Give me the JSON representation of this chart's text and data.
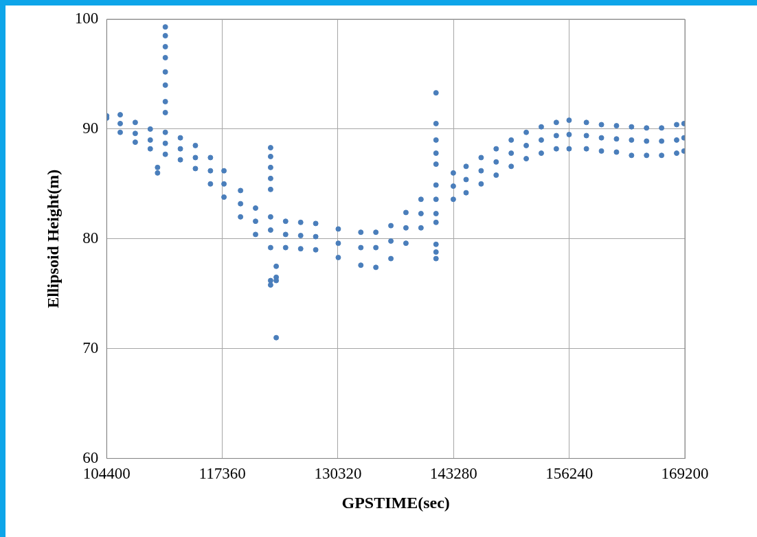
{
  "chart_data": {
    "type": "scatter",
    "xlabel": "GPSTIME(sec)",
    "ylabel": "Ellipsoid Height(m)",
    "xlim": [
      104400,
      169200
    ],
    "xticks": [
      104400,
      117360,
      130320,
      143280,
      156240,
      169200
    ],
    "ylim": [
      60,
      100
    ],
    "yticks": [
      60,
      70,
      80,
      90,
      100
    ],
    "grid": true,
    "marker": "circle",
    "series": [
      {
        "color": "#4a7ebb",
        "x": [
          104400,
          104400,
          105917,
          105917,
          105917,
          107602,
          107602,
          107602,
          109287,
          109287,
          109287,
          110973,
          110973,
          110973,
          112658,
          112658,
          112658,
          114344,
          114344,
          114344,
          116029,
          116029,
          116029,
          117546,
          117546,
          117546,
          119400,
          119400,
          119400,
          121085,
          121085,
          121085,
          122771,
          122771,
          122771,
          124456,
          124456,
          124456,
          126141,
          126141,
          126141,
          127827,
          127827,
          127827,
          130355,
          130355,
          130355,
          132883,
          132883,
          132883,
          134569,
          134569,
          134569,
          136254,
          136254,
          136254,
          137939,
          137939,
          137939,
          139625,
          139625,
          139625,
          141310,
          141310,
          141310,
          143248,
          143248,
          143248,
          144681,
          144681,
          144681,
          146366,
          146366,
          146366,
          148051,
          148051,
          148051,
          149737,
          149737,
          149737,
          151422,
          151422,
          151422,
          153108,
          153108,
          153108,
          154793,
          154793,
          154793,
          156225,
          156225,
          156225,
          158164,
          158164,
          158164,
          159849,
          159849,
          159849,
          161535,
          161535,
          161535,
          163220,
          163220,
          163220,
          164905,
          164905,
          164905,
          166591,
          166591,
          166591,
          168277,
          168277,
          168277,
          169100,
          169100,
          169100,
          110973,
          110973,
          110973,
          110973,
          110973,
          110973,
          110973,
          110973,
          110100,
          110100,
          122771,
          122771,
          122771,
          122771,
          122771,
          122771,
          122771,
          123400,
          123400,
          123400,
          123400,
          141310,
          141310,
          141310,
          141310,
          141310,
          141310,
          141310,
          141310,
          141310
        ],
        "values": [
          91.2,
          91.0,
          91.3,
          90.5,
          89.7,
          90.6,
          89.6,
          88.8,
          90.0,
          89.0,
          88.2,
          89.7,
          88.7,
          87.7,
          89.2,
          88.2,
          87.2,
          88.5,
          87.4,
          86.4,
          87.4,
          86.2,
          85.0,
          86.2,
          85.0,
          83.8,
          84.4,
          83.2,
          82.0,
          82.8,
          81.6,
          80.4,
          82.0,
          80.8,
          79.2,
          81.6,
          80.4,
          79.2,
          81.5,
          80.3,
          79.1,
          81.4,
          80.2,
          79.0,
          80.9,
          79.6,
          78.3,
          80.6,
          79.2,
          77.6,
          80.6,
          79.2,
          77.4,
          81.2,
          79.8,
          78.2,
          82.4,
          81.0,
          79.6,
          83.6,
          82.3,
          81.0,
          84.9,
          83.6,
          82.3,
          86.0,
          84.8,
          83.6,
          86.6,
          85.4,
          84.2,
          87.4,
          86.2,
          85.0,
          88.2,
          87.0,
          85.8,
          89.0,
          87.8,
          86.6,
          89.7,
          88.5,
          87.3,
          90.2,
          89.0,
          87.8,
          90.6,
          89.4,
          88.2,
          90.8,
          89.5,
          88.2,
          90.6,
          89.4,
          88.2,
          90.4,
          89.2,
          88.0,
          90.3,
          89.1,
          87.9,
          90.2,
          89.0,
          87.6,
          90.1,
          88.9,
          87.6,
          90.1,
          88.9,
          87.6,
          90.4,
          89.0,
          87.8,
          90.5,
          89.2,
          88.0,
          99.3,
          98.5,
          97.5,
          96.5,
          95.2,
          94.0,
          92.5,
          91.5,
          86.5,
          86.0,
          88.3,
          87.5,
          86.5,
          85.5,
          84.5,
          76.2,
          75.8,
          71.0,
          76.5,
          76.2,
          77.5,
          93.3,
          90.5,
          89.0,
          87.8,
          86.8,
          81.5,
          79.5,
          78.8,
          78.2
        ]
      }
    ]
  }
}
